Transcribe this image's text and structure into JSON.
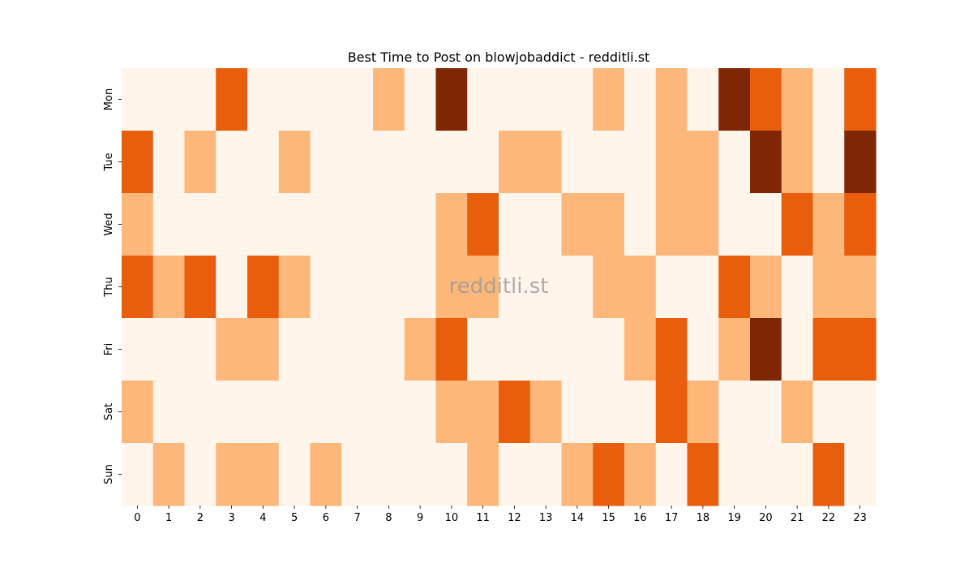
{
  "chart_data": {
    "type": "heatmap",
    "title": "Best Time to Post on blowjobaddict - redditli.st",
    "x_tick_labels": [
      "0",
      "1",
      "2",
      "3",
      "4",
      "5",
      "6",
      "7",
      "8",
      "9",
      "10",
      "11",
      "12",
      "13",
      "14",
      "15",
      "16",
      "17",
      "18",
      "19",
      "20",
      "21",
      "22",
      "23"
    ],
    "y_tick_labels": [
      "Mon",
      "Tue",
      "Wed",
      "Thu",
      "Fri",
      "Sat",
      "Sun"
    ],
    "color_levels": [
      "#fff5eb",
      "#fdb77a",
      "#e95e0d",
      "#7f2704"
    ],
    "values": [
      [
        0,
        0,
        0,
        2,
        0,
        0,
        0,
        0,
        1,
        0,
        3,
        0,
        0,
        0,
        0,
        1,
        0,
        1,
        0,
        3,
        2,
        1,
        0,
        2
      ],
      [
        2,
        0,
        1,
        0,
        0,
        1,
        0,
        0,
        0,
        0,
        0,
        0,
        1,
        1,
        0,
        0,
        0,
        1,
        1,
        0,
        3,
        1,
        0,
        3
      ],
      [
        1,
        0,
        0,
        0,
        0,
        0,
        0,
        0,
        0,
        0,
        1,
        2,
        0,
        0,
        1,
        1,
        0,
        1,
        1,
        0,
        0,
        2,
        1,
        2
      ],
      [
        2,
        1,
        2,
        0,
        2,
        1,
        0,
        0,
        0,
        0,
        1,
        1,
        0,
        0,
        0,
        1,
        1,
        0,
        0,
        2,
        1,
        0,
        1,
        1
      ],
      [
        0,
        0,
        0,
        1,
        1,
        0,
        0,
        0,
        0,
        1,
        2,
        0,
        0,
        0,
        0,
        0,
        1,
        2,
        0,
        1,
        3,
        0,
        2,
        2
      ],
      [
        1,
        0,
        0,
        0,
        0,
        0,
        0,
        0,
        0,
        0,
        1,
        1,
        2,
        1,
        0,
        0,
        0,
        2,
        1,
        0,
        0,
        1,
        0,
        0
      ],
      [
        0,
        1,
        0,
        1,
        1,
        0,
        1,
        0,
        0,
        0,
        0,
        1,
        0,
        0,
        1,
        2,
        1,
        0,
        2,
        0,
        0,
        0,
        2,
        0
      ]
    ],
    "xlabel": "",
    "ylabel": "",
    "colorbar": false,
    "grid": false
  },
  "watermark": "redditli.st"
}
